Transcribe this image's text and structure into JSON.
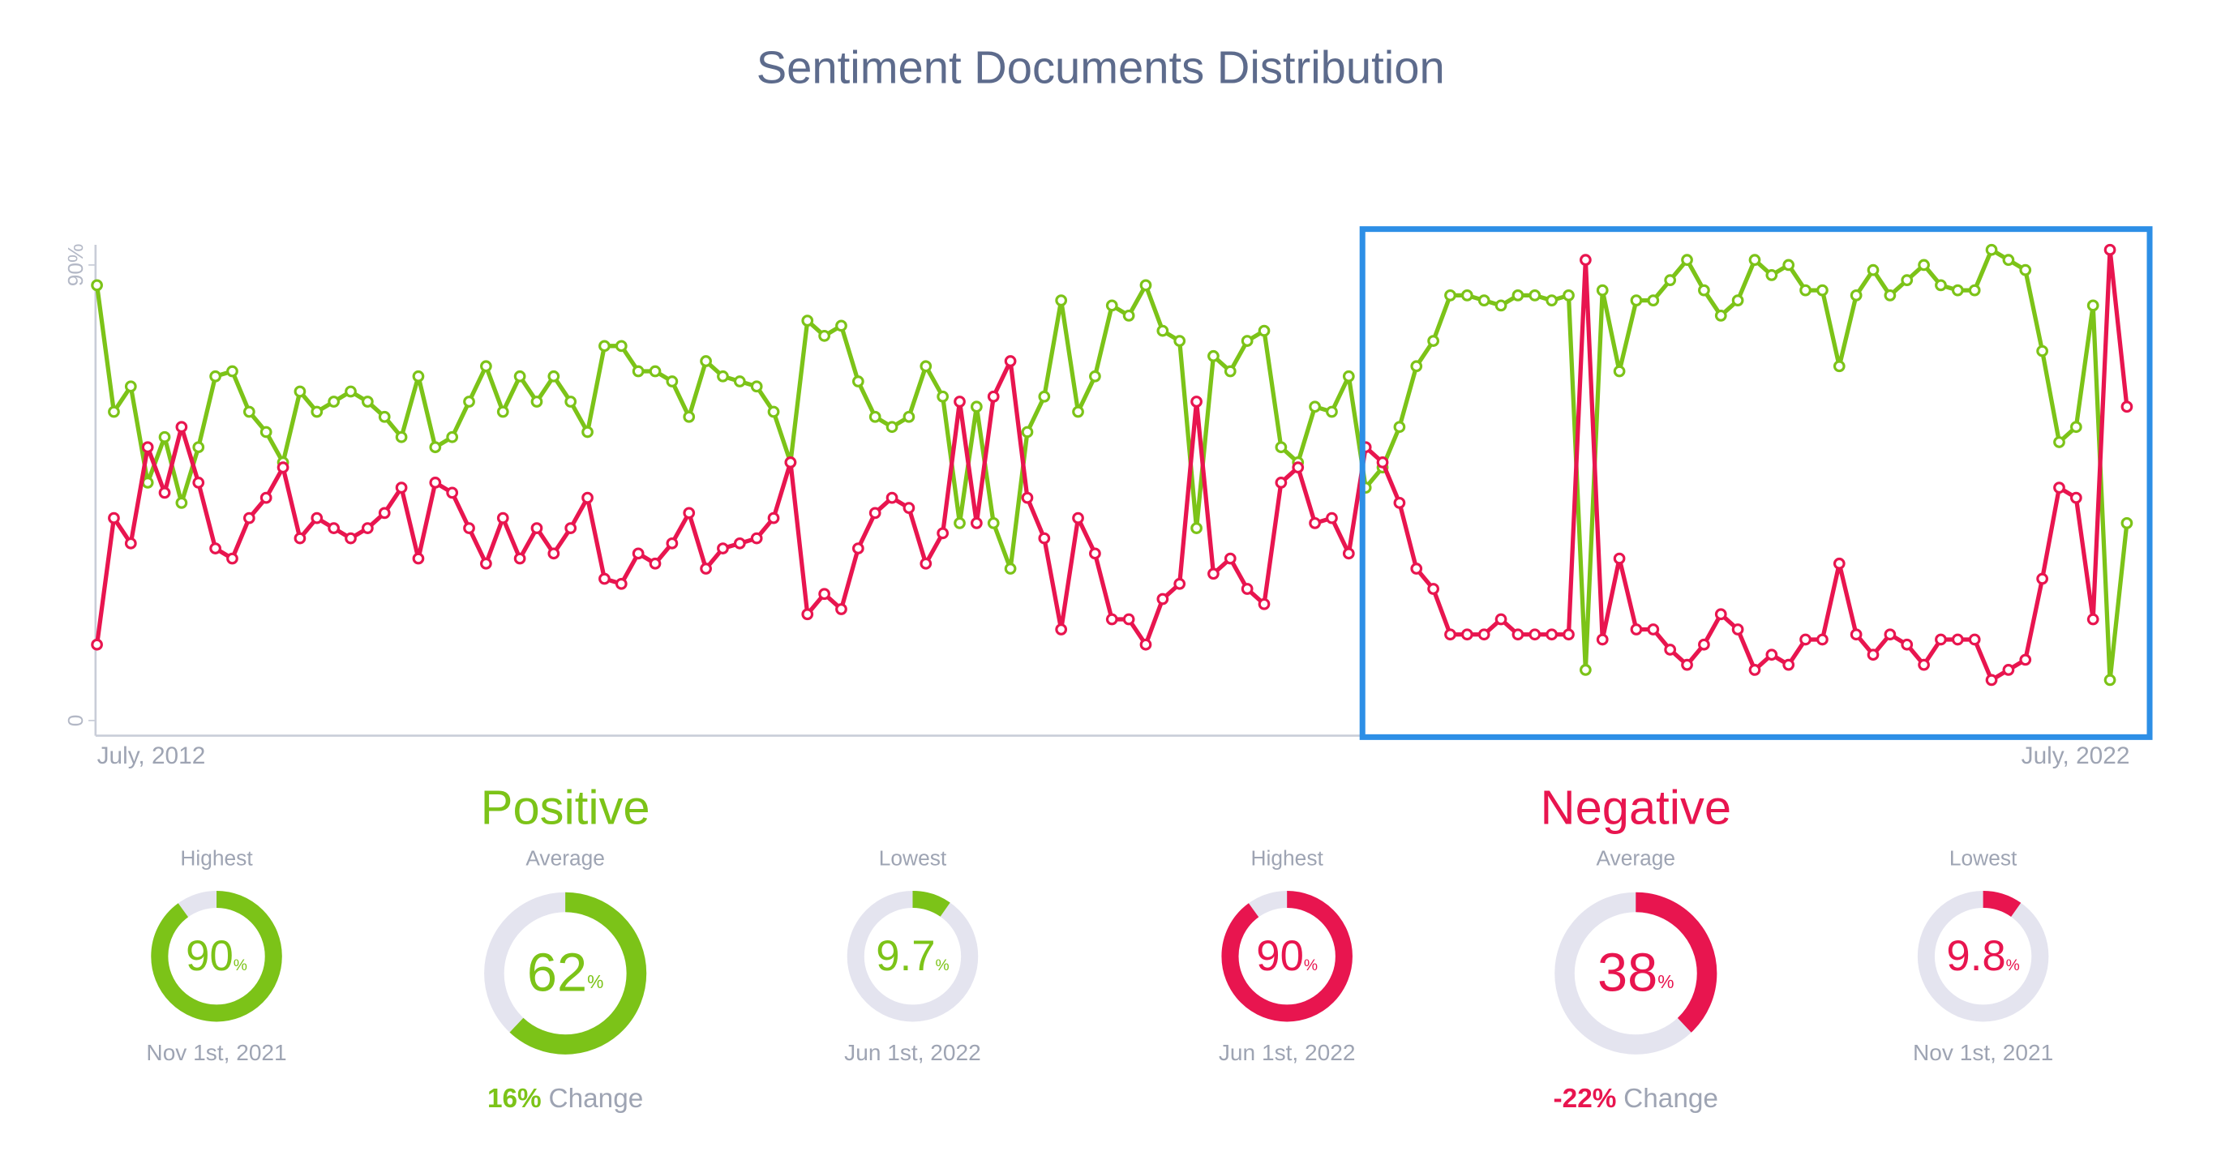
{
  "chart_data": {
    "type": "line",
    "title": "Sentiment Documents Distribution",
    "categories": [
      "July, 2012",
      null,
      null,
      null,
      null,
      null,
      null,
      null,
      null,
      null,
      null,
      null,
      null,
      null,
      null,
      null,
      null,
      null,
      null,
      null,
      null,
      null,
      null,
      null,
      null,
      null,
      null,
      null,
      null,
      null,
      null,
      null,
      null,
      null,
      null,
      null,
      null,
      null,
      null,
      null,
      null,
      null,
      null,
      null,
      null,
      null,
      null,
      null,
      null,
      null,
      null,
      null,
      null,
      null,
      null,
      null,
      null,
      null,
      null,
      null,
      null,
      null,
      null,
      null,
      null,
      null,
      null,
      null,
      null,
      null,
      null,
      null,
      null,
      null,
      null,
      null,
      null,
      null,
      null,
      null,
      null,
      null,
      null,
      null,
      null,
      null,
      null,
      null,
      null,
      null,
      null,
      null,
      null,
      null,
      null,
      null,
      null,
      null,
      null,
      null,
      null,
      null,
      null,
      null,
      null,
      null,
      null,
      null,
      null,
      null,
      null,
      null,
      null,
      null,
      null,
      null,
      null,
      null,
      null,
      null,
      "July, 2022"
    ],
    "series": [
      {
        "color": "#7cc318",
        "values": [
          86,
          61,
          66,
          47,
          56,
          43,
          54,
          68,
          69,
          61,
          57,
          51,
          65,
          61,
          63,
          65,
          63,
          60,
          56,
          68,
          54,
          56,
          63,
          70,
          61,
          68,
          63,
          68,
          63,
          57,
          74,
          74,
          69,
          69,
          67,
          60,
          71,
          68,
          67,
          66,
          61,
          51,
          79,
          76,
          78,
          67,
          60,
          58,
          60,
          70,
          64,
          39,
          62,
          39,
          30,
          57,
          64,
          83,
          61,
          68,
          82,
          80,
          86,
          77,
          75,
          38,
          72,
          69,
          75,
          77,
          54,
          51,
          62,
          61,
          68,
          46,
          50,
          58,
          70,
          75,
          84,
          84,
          83,
          82,
          84,
          84,
          83,
          84,
          10,
          85,
          69,
          83,
          83,
          87,
          91,
          85,
          80,
          83,
          91,
          88,
          90,
          85,
          85,
          70,
          84,
          89,
          84,
          87,
          90,
          86,
          85,
          85,
          93,
          91,
          89,
          73,
          55,
          58,
          82,
          8,
          39
        ]
      },
      {
        "color": "#e8154f",
        "values": [
          15,
          40,
          35,
          54,
          45,
          58,
          47,
          34,
          32,
          40,
          44,
          50,
          36,
          40,
          38,
          36,
          38,
          41,
          46,
          32,
          47,
          45,
          38,
          31,
          40,
          32,
          38,
          33,
          38,
          44,
          28,
          27,
          33,
          31,
          35,
          41,
          30,
          34,
          35,
          36,
          40,
          51,
          21,
          25,
          22,
          34,
          41,
          44,
          42,
          31,
          37,
          63,
          39,
          64,
          71,
          44,
          36,
          18,
          40,
          33,
          20,
          20,
          15,
          24,
          27,
          63,
          29,
          32,
          26,
          23,
          47,
          50,
          39,
          40,
          33,
          54,
          51,
          43,
          30,
          26,
          17,
          17,
          17,
          20,
          17,
          17,
          17,
          17,
          91,
          16,
          32,
          18,
          18,
          14,
          11,
          15,
          21,
          18,
          10,
          13,
          11,
          16,
          16,
          31,
          17,
          13,
          17,
          15,
          11,
          16,
          16,
          16,
          8,
          10,
          12,
          28,
          46,
          44,
          20,
          93,
          62
        ]
      }
    ],
    "ylim": [
      -3,
      94
    ],
    "yticks": [
      0,
      {
        "value": 90,
        "label": "90%"
      }
    ]
  },
  "summary": {
    "unit": "%",
    "groups": [
      {
        "name": "Positive",
        "stats": [
          {
            "label": "Highest",
            "value": 90,
            "date": "Nov 1st, 2021"
          },
          {
            "label": "Average",
            "value": 62
          },
          {
            "label": "Lowest",
            "value": 9.7,
            "date": "Jun 1st, 2022"
          }
        ],
        "change": {
          "value": 16,
          "label": "16%",
          "text": "Change"
        }
      },
      {
        "name": "Negative",
        "stats": [
          {
            "label": "Highest",
            "value": 90,
            "date": "Jun 1st, 2022"
          },
          {
            "label": "Average",
            "value": 38
          },
          {
            "label": "Lowest",
            "value": 9.8,
            "date": "Nov 1st, 2021"
          }
        ],
        "change": {
          "value": -22,
          "label": "-22%",
          "text": "Change"
        }
      }
    ]
  }
}
